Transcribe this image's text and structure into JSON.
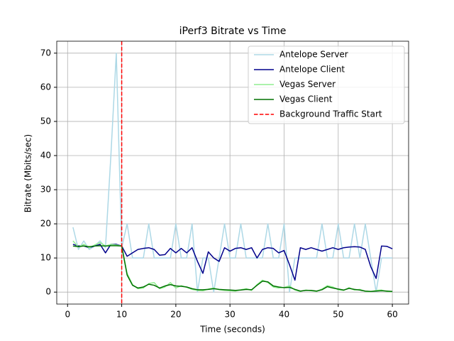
{
  "chart_data": {
    "type": "line",
    "title": "iPerf3 Bitrate vs Time",
    "xlabel": "Time (seconds)",
    "ylabel": "Bitrate (Mbits/sec)",
    "x": [
      1,
      2,
      3,
      4,
      5,
      6,
      7,
      8,
      9,
      10,
      11,
      12,
      13,
      14,
      15,
      16,
      17,
      18,
      19,
      20,
      21,
      22,
      23,
      24,
      25,
      26,
      27,
      28,
      29,
      30,
      31,
      32,
      33,
      34,
      35,
      36,
      37,
      38,
      39,
      40,
      41,
      42,
      43,
      44,
      45,
      46,
      47,
      48,
      49,
      50,
      51,
      52,
      53,
      54,
      55,
      56,
      57,
      58,
      59,
      60
    ],
    "series": [
      {
        "name": "Antelope Server",
        "color": "#add8e6",
        "values": [
          19,
          12.5,
          15,
          12.5,
          13.5,
          15,
          13,
          40,
          70,
          13,
          20,
          10,
          10,
          10,
          20,
          10,
          10,
          10,
          10,
          20,
          10,
          10,
          20,
          0,
          10,
          10,
          0,
          10,
          20,
          10,
          10,
          20,
          10,
          10,
          10,
          10,
          20,
          10,
          10,
          20,
          0,
          10,
          10,
          10,
          10,
          10,
          20,
          10,
          10,
          20,
          10,
          10,
          20,
          10,
          20,
          10,
          0,
          10,
          10,
          10
        ]
      },
      {
        "name": "Antelope Client",
        "color": "#00008b",
        "values": [
          14,
          13.5,
          13.5,
          13,
          13.5,
          14,
          11.5,
          14,
          14,
          13.5,
          10.5,
          11.5,
          12.5,
          12.8,
          13,
          12.5,
          10.8,
          11,
          12.8,
          11.5,
          12.8,
          11.5,
          13,
          9,
          5.5,
          11.8,
          10,
          9,
          13,
          12,
          12.8,
          13,
          12.5,
          13,
          10,
          12.5,
          13,
          12.8,
          11.5,
          12.2,
          8,
          3.5,
          13,
          12.5,
          13,
          12.5,
          12,
          12.5,
          13,
          12.5,
          13,
          13.2,
          13.3,
          13.2,
          12.5,
          7.5,
          4,
          13.5,
          13.4,
          12.7
        ]
      },
      {
        "name": "Vegas Server",
        "color": "#90ee90",
        "values": [
          15,
          13.2,
          14,
          13,
          13.8,
          14.5,
          13.5,
          14,
          13.8,
          13.5,
          5.5,
          2.2,
          1,
          1.2,
          2.5,
          2.8,
          1,
          1.5,
          2.8,
          1.2,
          1.9,
          1.4,
          0.8,
          0.5,
          0.4,
          0.9,
          1.2,
          0.7,
          0.5,
          0.4,
          0.3,
          0.7,
          1,
          0.5,
          2.2,
          3.5,
          2.8,
          1.5,
          1.2,
          1.4,
          1.8,
          0.6,
          0.2,
          0.6,
          0.4,
          0.2,
          0.9,
          1.9,
          1.5,
          0.7,
          0.5,
          1.3,
          0.6,
          0.8,
          0.2,
          0.1,
          0.5,
          0.6,
          0.2,
          0.1
        ]
      },
      {
        "name": "Vegas Client",
        "color": "#007000",
        "values": [
          13.5,
          13.3,
          13.5,
          13.3,
          13.5,
          13.6,
          13.5,
          13.6,
          13.6,
          13.5,
          5,
          2,
          1.2,
          1.5,
          2.3,
          2,
          1.2,
          1.8,
          2.2,
          1.8,
          1.7,
          1.5,
          1,
          0.7,
          0.7,
          0.8,
          1,
          0.8,
          0.7,
          0.6,
          0.5,
          0.6,
          0.8,
          0.7,
          2,
          3.2,
          3,
          1.8,
          1.5,
          1.3,
          1.4,
          0.8,
          0.3,
          0.5,
          0.5,
          0.3,
          0.7,
          1.6,
          1.2,
          0.9,
          0.6,
          1.1,
          0.8,
          0.6,
          0.3,
          0.2,
          0.3,
          0.4,
          0.3,
          0.2
        ]
      }
    ],
    "vlines": [
      {
        "x": 10,
        "label": "Background Traffic Start",
        "color": "#ff0000"
      }
    ],
    "xlim": [
      -2,
      63
    ],
    "ylim": [
      -3.5,
      73.5
    ],
    "xticks": [
      0,
      10,
      20,
      30,
      40,
      50,
      60
    ],
    "yticks": [
      0,
      10,
      20,
      30,
      40,
      50,
      60,
      70
    ],
    "grid": true,
    "legend": "upper right"
  }
}
